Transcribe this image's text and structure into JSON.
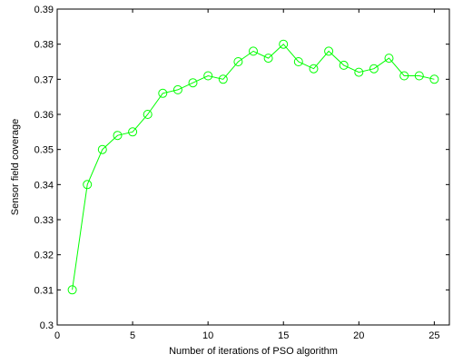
{
  "chart_data": {
    "type": "line",
    "title": "",
    "xlabel": "Number of iterations of PSO algorithm",
    "ylabel": "Sensor field coverage",
    "xlim": [
      0,
      26
    ],
    "ylim": [
      0.3,
      0.39
    ],
    "xticks": [
      0,
      5,
      10,
      15,
      20,
      25
    ],
    "xtick_labels": [
      "0",
      "5",
      "10",
      "15",
      "20",
      "25"
    ],
    "yticks": [
      0.3,
      0.31,
      0.32,
      0.33,
      0.34,
      0.35,
      0.36,
      0.37,
      0.38,
      0.39
    ],
    "ytick_labels": [
      "0.3",
      "0.31",
      "0.32",
      "0.33",
      "0.34",
      "0.35",
      "0.36",
      "0.37",
      "0.38",
      "0.39"
    ],
    "grid": false,
    "legend": false,
    "series": [
      {
        "color": "#00ff00",
        "marker": "circle",
        "x": [
          1,
          2,
          3,
          4,
          5,
          6,
          7,
          8,
          9,
          10,
          11,
          12,
          13,
          14,
          15,
          16,
          17,
          18,
          19,
          20,
          21,
          22,
          23,
          24,
          25
        ],
        "y": [
          0.31,
          0.34,
          0.35,
          0.354,
          0.355,
          0.36,
          0.366,
          0.367,
          0.369,
          0.371,
          0.37,
          0.375,
          0.378,
          0.376,
          0.38,
          0.375,
          0.373,
          0.378,
          0.374,
          0.372,
          0.373,
          0.376,
          0.371,
          0.371,
          0.37
        ]
      }
    ]
  }
}
